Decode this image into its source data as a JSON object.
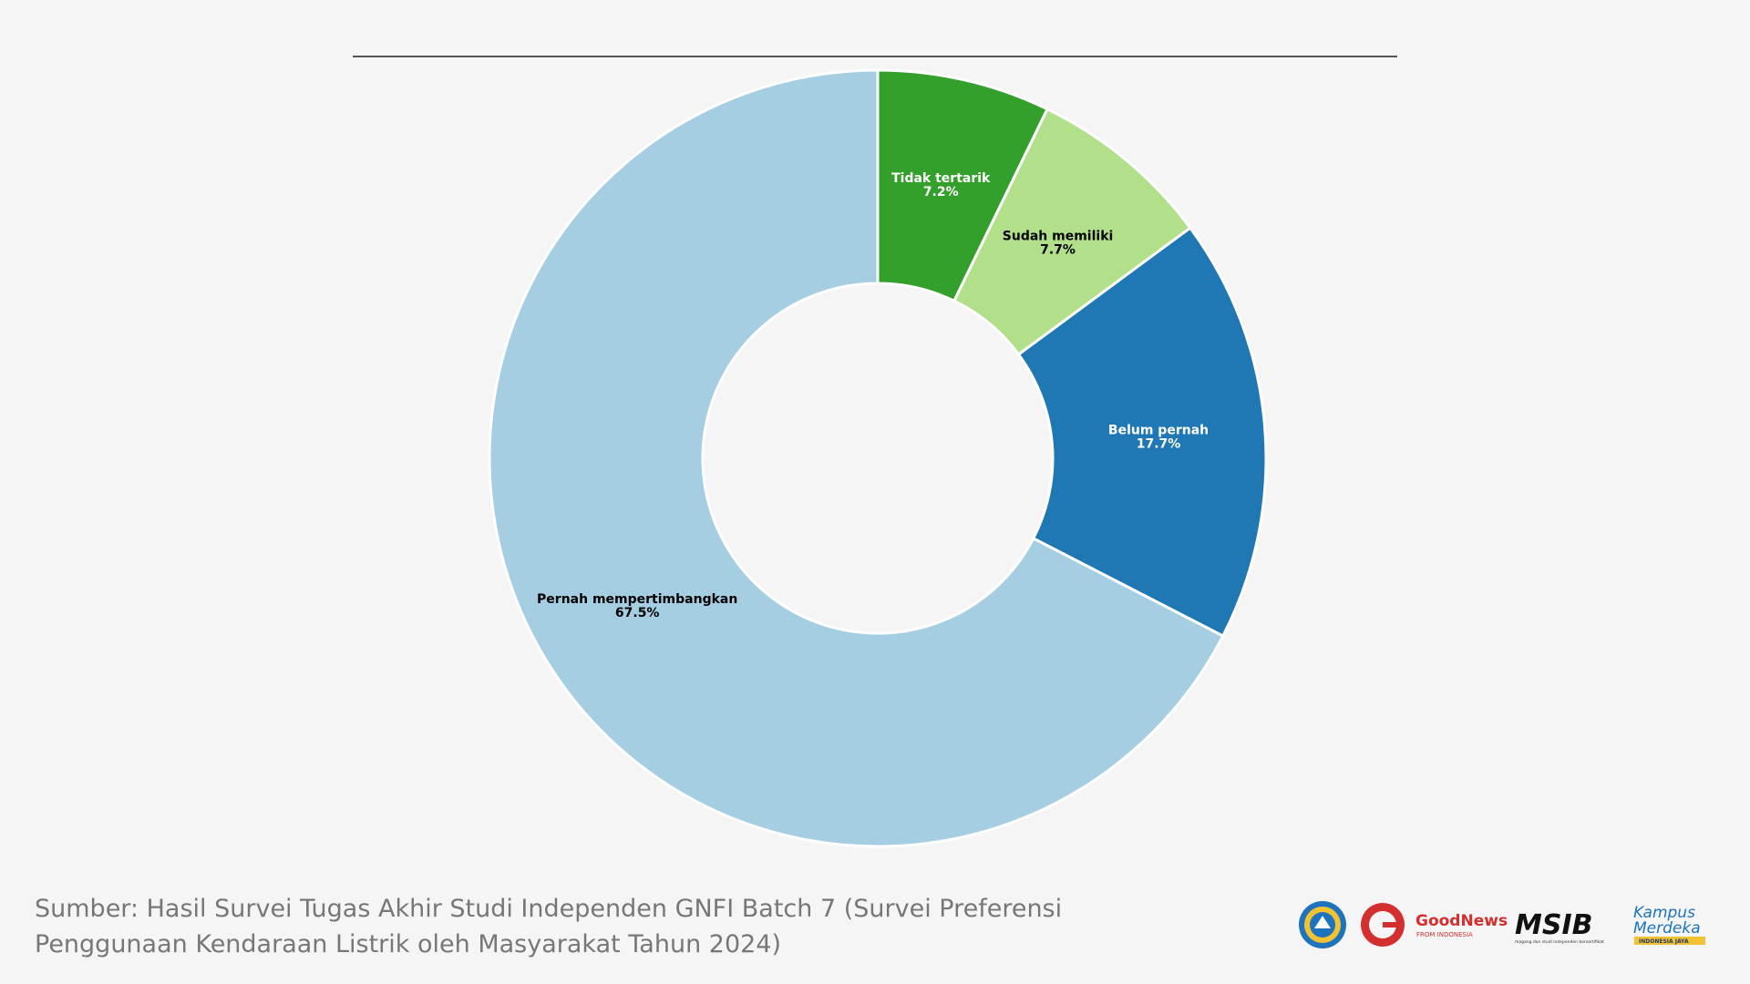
{
  "chart_data": {
    "type": "pie",
    "donut": true,
    "title": "",
    "slices": [
      {
        "label": "Tidak tertarik",
        "value": 7.2,
        "percent_label": "7.2%",
        "color": "#33a02c",
        "text_color": "#ffffff"
      },
      {
        "label": "Sudah memiliki",
        "value": 7.7,
        "percent_label": "7.7%",
        "color": "#b2df8a",
        "text_color": "#000000"
      },
      {
        "label": "Belum pernah",
        "value": 17.7,
        "percent_label": "17.7%",
        "color": "#1f78b4",
        "text_color": "#ffffff"
      },
      {
        "label": "Pernah mempertimbangkan",
        "value": 67.5,
        "percent_label": "67.5%",
        "color": "#a6cee3",
        "text_color": "#000000"
      }
    ]
  },
  "source": {
    "line1": "Sumber: Hasil Survei Tugas Akhir Studi Independen GNFI Batch 7 (Survei Preferensi",
    "line2": "Penggunaan Kendaraan Listrik oleh Masyarakat Tahun 2024)"
  },
  "logos": {
    "goodnews": "GoodNews",
    "goodnews_sub": "FROM INDONESIA",
    "msib": "MSIB",
    "msib_sub": "magang dan studi independen bersertifikat",
    "kampus_line1": "Kampus",
    "kampus_line2": "Merdeka",
    "kampus_sub": "INDONESIA JAYA"
  }
}
